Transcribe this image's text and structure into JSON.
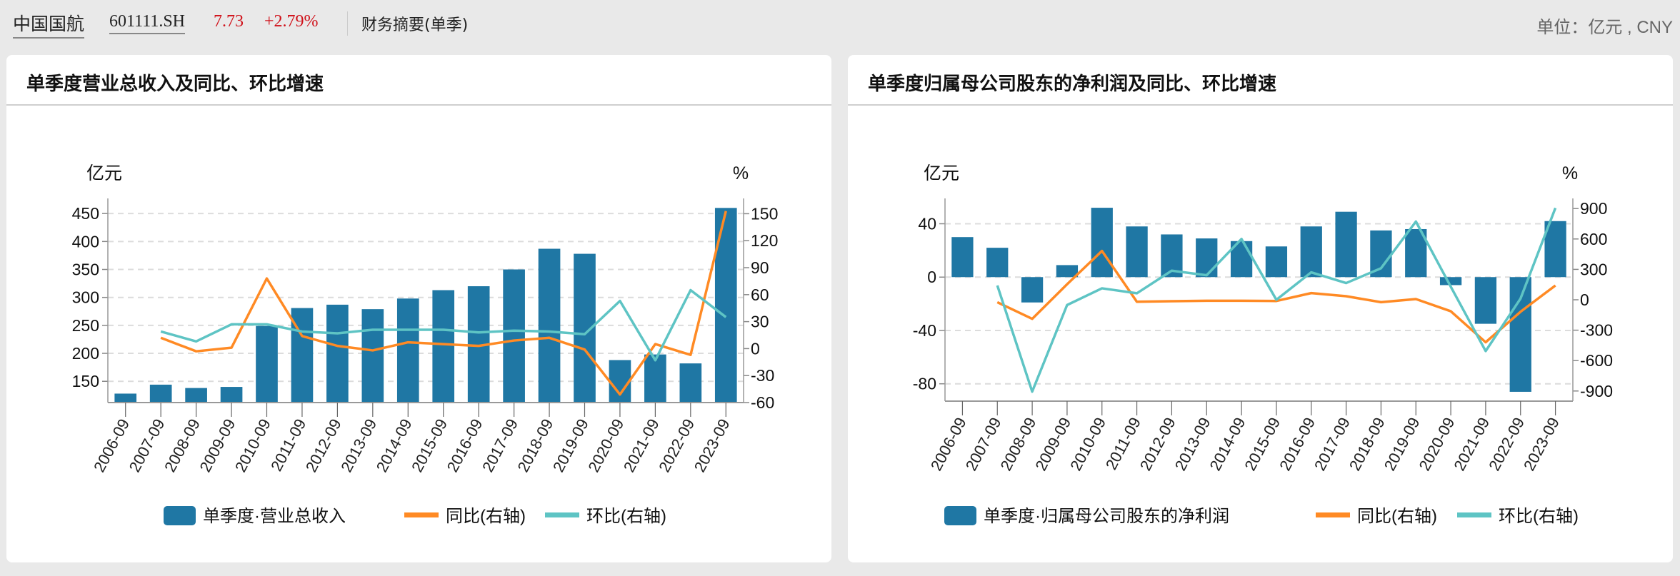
{
  "header": {
    "stock_name": "中国国航",
    "stock_code": "601111.SH",
    "price": "7.73",
    "change": "+2.79%",
    "section": "财务摘要(单季)",
    "unit": "单位：亿元 , CNY"
  },
  "colors": {
    "bar": "#1f77a4",
    "yoy": "#ff8a24",
    "qoq": "#5ec4c4"
  },
  "chart_data": [
    {
      "type": "bar+line",
      "title": "单季度营业总收入及同比、环比增速",
      "ylabel_left": "亿元",
      "ylabel_right": "%",
      "ylim_left": [
        112,
        477
      ],
      "yticks_left": [
        150,
        200,
        250,
        300,
        350,
        400,
        450
      ],
      "ylim_right": [
        -60,
        167
      ],
      "yticks_right": [
        -60,
        -30,
        0,
        30,
        60,
        90,
        120,
        150
      ],
      "grid": true,
      "legend": "bottom",
      "categories": [
        "2006-09",
        "2007-09",
        "2008-09",
        "2009-09",
        "2010-09",
        "2011-09",
        "2012-09",
        "2013-09",
        "2014-09",
        "2015-09",
        "2016-09",
        "2017-09",
        "2018-09",
        "2019-09",
        "2020-09",
        "2021-09",
        "2022-09",
        "2023-09"
      ],
      "series": [
        {
          "name": "单季度·营业总收入",
          "type": "bar",
          "axis": "left",
          "values": [
            128,
            144,
            138,
            140,
            249,
            281,
            287,
            279,
            298,
            313,
            320,
            350,
            387,
            378,
            188,
            198,
            182,
            460
          ]
        },
        {
          "name": "同比(右轴)",
          "type": "line",
          "axis": "right",
          "values": [
            null,
            12,
            -3,
            1,
            78,
            14,
            3,
            -2,
            7,
            5,
            3,
            9,
            12,
            -1,
            -51,
            5,
            -7,
            153
          ]
        },
        {
          "name": "环比(右轴)",
          "type": "line",
          "axis": "right",
          "values": [
            null,
            19,
            8,
            27,
            27,
            19,
            17,
            21,
            21,
            21,
            18,
            20,
            19,
            16,
            53,
            -13,
            65,
            35
          ]
        }
      ]
    },
    {
      "type": "bar+line",
      "title": "单季度归属母公司股东的净利润及同比、环比增速",
      "ylabel_left": "亿元",
      "ylabel_right": "%",
      "ylim_left": [
        -93,
        59
      ],
      "yticks_left": [
        -80,
        -40,
        0,
        40
      ],
      "ylim_right": [
        -1000,
        1000
      ],
      "yticks_right": [
        -900,
        -600,
        -300,
        0,
        300,
        600,
        900
      ],
      "grid": true,
      "legend": "bottom",
      "categories": [
        "2006-09",
        "2007-09",
        "2008-09",
        "2009-09",
        "2010-09",
        "2011-09",
        "2012-09",
        "2013-09",
        "2014-09",
        "2015-09",
        "2016-09",
        "2017-09",
        "2018-09",
        "2019-09",
        "2020-09",
        "2021-09",
        "2022-09",
        "2023-09"
      ],
      "series": [
        {
          "name": "单季度·归属母公司股东的净利润",
          "type": "bar",
          "axis": "left",
          "values": [
            30,
            22,
            -19,
            9,
            52,
            38,
            32,
            29,
            27,
            23,
            38,
            49,
            35,
            36,
            -6,
            -35,
            -86,
            42
          ]
        },
        {
          "name": "同比(右轴)",
          "type": "line",
          "axis": "right",
          "values": [
            null,
            -24,
            -188,
            153,
            482,
            -19,
            -14,
            -10,
            -10,
            -12,
            66,
            35,
            -24,
            7,
            -113,
            -419,
            -118,
            141
          ]
        },
        {
          "name": "环比(右轴)",
          "type": "line",
          "axis": "right",
          "values": [
            null,
            141,
            -906,
            -52,
            113,
            64,
            287,
            242,
            600,
            0,
            271,
            165,
            311,
            772,
            129,
            -506,
            12,
            906
          ]
        }
      ]
    }
  ]
}
